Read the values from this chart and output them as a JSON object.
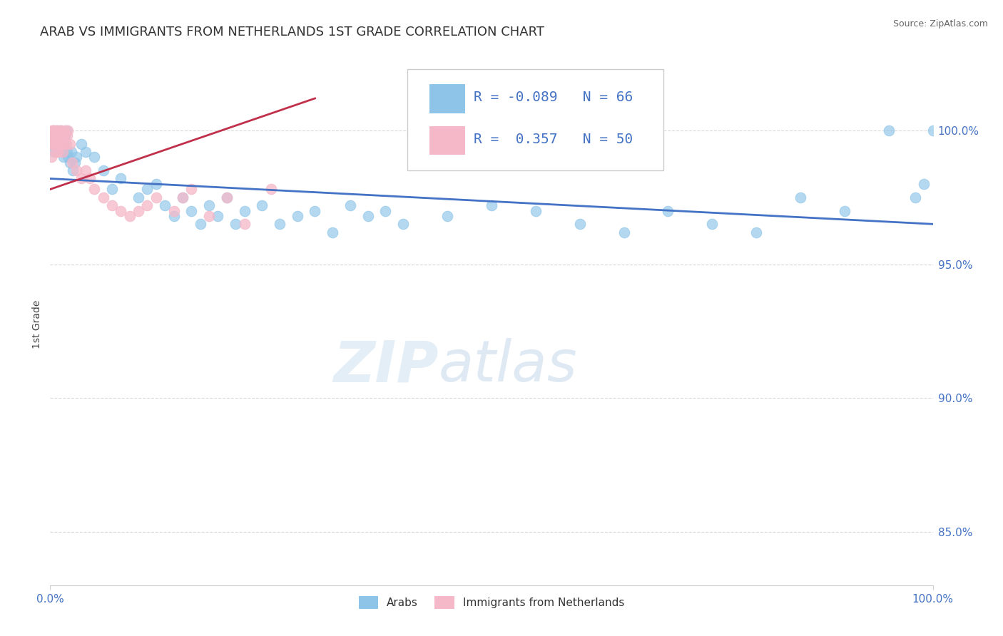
{
  "title": "ARAB VS IMMIGRANTS FROM NETHERLANDS 1ST GRADE CORRELATION CHART",
  "source": "Source: ZipAtlas.com",
  "ylabel": "1st Grade",
  "xlim": [
    0,
    100
  ],
  "ylim": [
    83.0,
    102.5
  ],
  "yticks": [
    85.0,
    90.0,
    95.0,
    100.0
  ],
  "ytick_labels": [
    "85.0%",
    "90.0%",
    "95.0%",
    "100.0%"
  ],
  "xtick_labels": [
    "0.0%",
    "100.0%"
  ],
  "legend_r_blue": "-0.089",
  "legend_n_blue": "66",
  "legend_r_pink": "0.357",
  "legend_n_pink": "50",
  "blue_color": "#8dc4e8",
  "pink_color": "#f5b8c8",
  "trend_blue_color": "#4472c4",
  "trend_pink_color": "#c0304a",
  "blue_scatter_x": [
    0.2,
    0.3,
    0.4,
    0.5,
    0.6,
    0.7,
    0.8,
    0.9,
    1.0,
    1.1,
    1.2,
    1.3,
    1.4,
    1.5,
    1.6,
    1.7,
    1.8,
    1.9,
    2.0,
    2.2,
    2.4,
    2.6,
    2.8,
    3.0,
    3.5,
    4.0,
    5.0,
    6.0,
    7.0,
    8.0,
    10.0,
    11.0,
    12.0,
    13.0,
    14.0,
    15.0,
    16.0,
    17.0,
    18.0,
    19.0,
    20.0,
    21.0,
    22.0,
    24.0,
    26.0,
    28.0,
    30.0,
    32.0,
    34.0,
    36.0,
    38.0,
    40.0,
    45.0,
    50.0,
    55.0,
    60.0,
    65.0,
    70.0,
    75.0,
    80.0,
    85.0,
    90.0,
    95.0,
    98.0,
    99.0,
    100.0
  ],
  "blue_scatter_y": [
    99.5,
    99.8,
    100.0,
    99.2,
    99.5,
    99.8,
    100.0,
    99.3,
    99.6,
    99.8,
    100.0,
    99.5,
    99.2,
    99.0,
    99.5,
    99.8,
    100.0,
    99.2,
    99.0,
    98.8,
    99.2,
    98.5,
    98.8,
    99.0,
    99.5,
    99.2,
    99.0,
    98.5,
    97.8,
    98.2,
    97.5,
    97.8,
    98.0,
    97.2,
    96.8,
    97.5,
    97.0,
    96.5,
    97.2,
    96.8,
    97.5,
    96.5,
    97.0,
    97.2,
    96.5,
    96.8,
    97.0,
    96.2,
    97.2,
    96.8,
    97.0,
    96.5,
    96.8,
    97.2,
    97.0,
    96.5,
    96.2,
    97.0,
    96.5,
    96.2,
    97.5,
    97.0,
    100.0,
    97.5,
    98.0,
    100.0
  ],
  "pink_scatter_x": [
    0.1,
    0.15,
    0.2,
    0.25,
    0.3,
    0.35,
    0.4,
    0.45,
    0.5,
    0.55,
    0.6,
    0.65,
    0.7,
    0.75,
    0.8,
    0.85,
    0.9,
    0.95,
    1.0,
    1.1,
    1.2,
    1.3,
    1.4,
    1.5,
    1.6,
    1.7,
    1.8,
    1.9,
    2.0,
    2.2,
    2.5,
    3.0,
    3.5,
    4.0,
    4.5,
    5.0,
    6.0,
    7.0,
    8.0,
    9.0,
    10.0,
    11.0,
    12.0,
    14.0,
    15.0,
    16.0,
    18.0,
    20.0,
    22.0,
    25.0
  ],
  "pink_scatter_y": [
    99.0,
    99.5,
    100.0,
    99.8,
    100.0,
    99.5,
    99.8,
    100.0,
    99.5,
    99.8,
    100.0,
    99.2,
    99.5,
    99.8,
    100.0,
    99.5,
    99.2,
    99.8,
    100.0,
    99.5,
    99.8,
    100.0,
    99.2,
    99.5,
    99.8,
    100.0,
    99.5,
    99.8,
    100.0,
    99.5,
    98.8,
    98.5,
    98.2,
    98.5,
    98.2,
    97.8,
    97.5,
    97.2,
    97.0,
    96.8,
    97.0,
    97.2,
    97.5,
    97.0,
    97.5,
    97.8,
    96.8,
    97.5,
    96.5,
    97.8
  ],
  "watermark_zip": "ZIP",
  "watermark_atlas": "atlas",
  "background_color": "#ffffff",
  "grid_color": "#d0d0d0",
  "axis_color": "#4472c4",
  "blue_trend_x": [
    0,
    100
  ],
  "blue_trend_y": [
    98.2,
    96.5
  ],
  "pink_trend_x": [
    0,
    30
  ],
  "pink_trend_y": [
    97.8,
    101.2
  ]
}
